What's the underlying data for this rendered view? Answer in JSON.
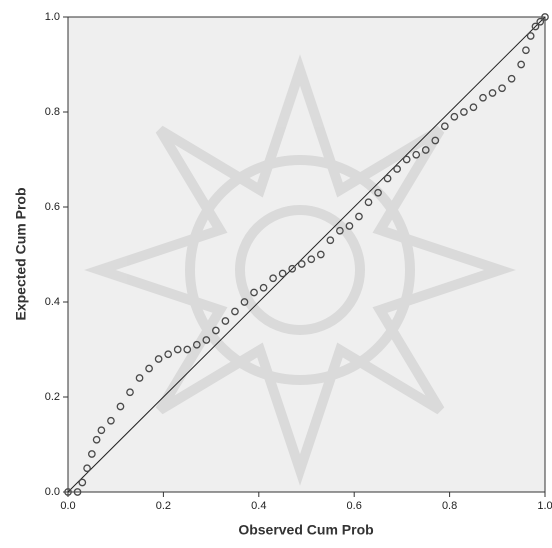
{
  "chart_data": {
    "type": "scatter",
    "x_label": "Observed Cum Prob",
    "y_label": "Expected Cum Prob",
    "x": [
      0.0,
      0.02,
      0.03,
      0.04,
      0.05,
      0.06,
      0.07,
      0.09,
      0.11,
      0.13,
      0.15,
      0.17,
      0.19,
      0.21,
      0.23,
      0.25,
      0.27,
      0.29,
      0.31,
      0.33,
      0.35,
      0.37,
      0.39,
      0.41,
      0.43,
      0.45,
      0.47,
      0.49,
      0.51,
      0.53,
      0.55,
      0.57,
      0.59,
      0.61,
      0.63,
      0.65,
      0.67,
      0.69,
      0.71,
      0.73,
      0.75,
      0.77,
      0.79,
      0.81,
      0.83,
      0.85,
      0.87,
      0.89,
      0.91,
      0.93,
      0.95,
      0.96,
      0.97,
      0.98,
      0.99,
      1.0
    ],
    "values": [
      0.0,
      0.0,
      0.02,
      0.05,
      0.08,
      0.11,
      0.13,
      0.15,
      0.18,
      0.21,
      0.24,
      0.26,
      0.28,
      0.29,
      0.3,
      0.3,
      0.31,
      0.32,
      0.34,
      0.36,
      0.38,
      0.4,
      0.42,
      0.43,
      0.45,
      0.46,
      0.47,
      0.48,
      0.49,
      0.5,
      0.53,
      0.55,
      0.56,
      0.58,
      0.61,
      0.63,
      0.66,
      0.68,
      0.7,
      0.71,
      0.72,
      0.74,
      0.77,
      0.79,
      0.8,
      0.81,
      0.83,
      0.84,
      0.85,
      0.87,
      0.9,
      0.93,
      0.96,
      0.98,
      0.99,
      1.0
    ],
    "color": "#4a4a4a",
    "xlim": [
      0,
      1
    ],
    "ylim": [
      0,
      1
    ],
    "xticks": [
      {
        "value": 0,
        "label": "0.0"
      },
      0.2,
      0.4,
      0.6,
      0.8,
      {
        "value": 1,
        "label": "1.0"
      }
    ],
    "yticks": [
      {
        "value": 0,
        "label": "0.0"
      },
      0.2,
      0.4,
      0.6,
      0.8,
      {
        "value": 1,
        "label": "1.0"
      }
    ]
  }
}
